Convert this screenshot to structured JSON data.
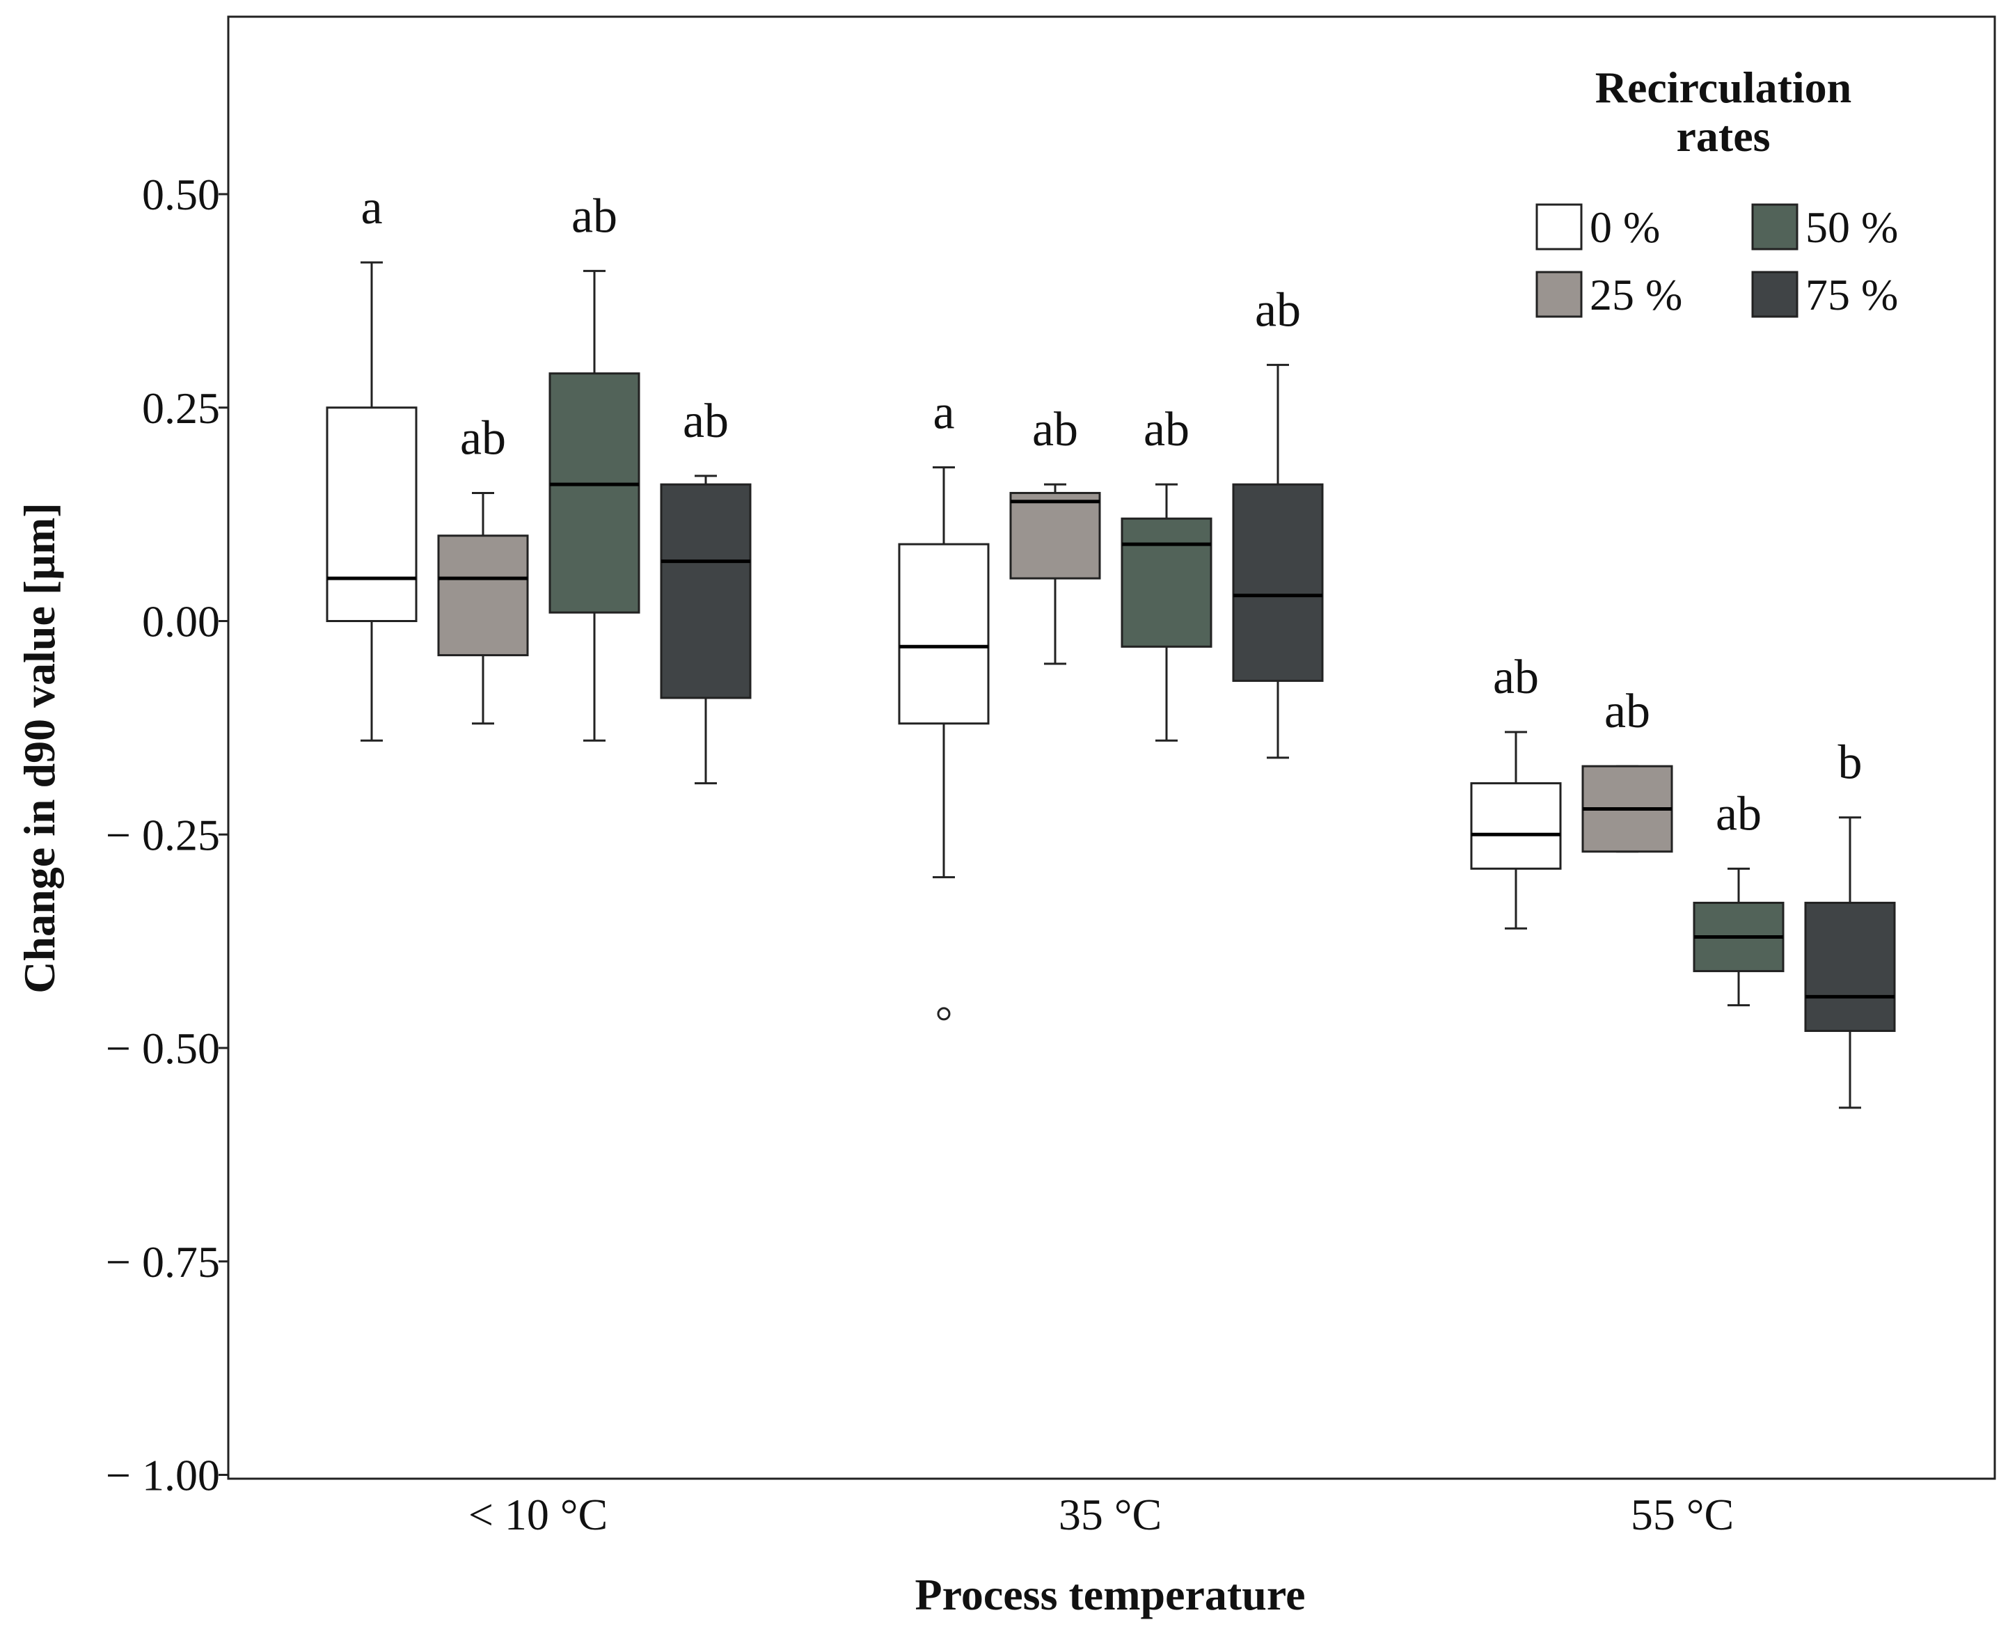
{
  "chart_data": {
    "type": "boxplot",
    "xlabel": "Process temperature",
    "ylabel": "Change in d90 value [µm]",
    "ylim": [
      -1.0,
      0.7
    ],
    "yticks": [
      0.5,
      0.25,
      0.0,
      -0.25,
      -0.5,
      -0.75,
      -1.0
    ],
    "ytick_labels": [
      "0.50",
      "0.25",
      "0.00",
      "− 0.25",
      "− 0.50",
      "− 0.75",
      "− 1.00"
    ],
    "categories": [
      "< 10 °C",
      "35 °C",
      "55 °C"
    ],
    "legend": {
      "title_line1": "Recirculation",
      "title_line2": "rates",
      "position": "top-right",
      "entries": [
        {
          "label": "0 %",
          "color": "#ffffff"
        },
        {
          "label": "25 %",
          "color": "#9a9490"
        },
        {
          "label": "50 %",
          "color": "#526359"
        },
        {
          "label": "75 %",
          "color": "#404446"
        }
      ]
    },
    "series": [
      {
        "name": "0 %",
        "color": "#ffffff",
        "boxes": [
          {
            "whisker_low": -0.14,
            "q1": 0.0,
            "median": 0.05,
            "q3": 0.25,
            "whisker_high": 0.42,
            "letter": "a",
            "outliers": []
          },
          {
            "whisker_low": -0.3,
            "q1": -0.12,
            "median": -0.03,
            "q3": 0.09,
            "whisker_high": 0.18,
            "letter": "a",
            "outliers": [
              -0.46
            ]
          },
          {
            "whisker_low": -0.36,
            "q1": -0.29,
            "median": -0.25,
            "q3": -0.19,
            "whisker_high": -0.13,
            "letter": "ab",
            "outliers": []
          }
        ]
      },
      {
        "name": "25 %",
        "color": "#9a9490",
        "boxes": [
          {
            "whisker_low": -0.12,
            "q1": -0.04,
            "median": 0.05,
            "q3": 0.1,
            "whisker_high": 0.15,
            "letter": "ab",
            "outliers": []
          },
          {
            "whisker_low": -0.05,
            "q1": 0.05,
            "median": 0.14,
            "q3": 0.15,
            "whisker_high": 0.16,
            "letter": "ab",
            "outliers": []
          },
          {
            "whisker_low": -0.27,
            "q1": -0.27,
            "median": -0.22,
            "q3": -0.17,
            "whisker_high": -0.17,
            "letter": "ab",
            "outliers": []
          }
        ]
      },
      {
        "name": "50 %",
        "color": "#526359",
        "boxes": [
          {
            "whisker_low": -0.14,
            "q1": 0.01,
            "median": 0.16,
            "q3": 0.29,
            "whisker_high": 0.41,
            "letter": "ab",
            "outliers": []
          },
          {
            "whisker_low": -0.14,
            "q1": -0.03,
            "median": 0.09,
            "q3": 0.12,
            "whisker_high": 0.16,
            "letter": "ab",
            "outliers": []
          },
          {
            "whisker_low": -0.45,
            "q1": -0.41,
            "median": -0.37,
            "q3": -0.33,
            "whisker_high": -0.29,
            "letter": "ab",
            "outliers": []
          }
        ]
      },
      {
        "name": "75 %",
        "color": "#404446",
        "boxes": [
          {
            "whisker_low": -0.19,
            "q1": -0.09,
            "median": 0.07,
            "q3": 0.16,
            "whisker_high": 0.17,
            "letter": "ab",
            "outliers": []
          },
          {
            "whisker_low": -0.16,
            "q1": -0.07,
            "median": 0.03,
            "q3": 0.16,
            "whisker_high": 0.3,
            "letter": "ab",
            "outliers": []
          },
          {
            "whisker_low": -0.57,
            "q1": -0.48,
            "median": -0.44,
            "q3": -0.33,
            "whisker_high": -0.23,
            "letter": "b",
            "outliers": []
          }
        ]
      }
    ]
  }
}
